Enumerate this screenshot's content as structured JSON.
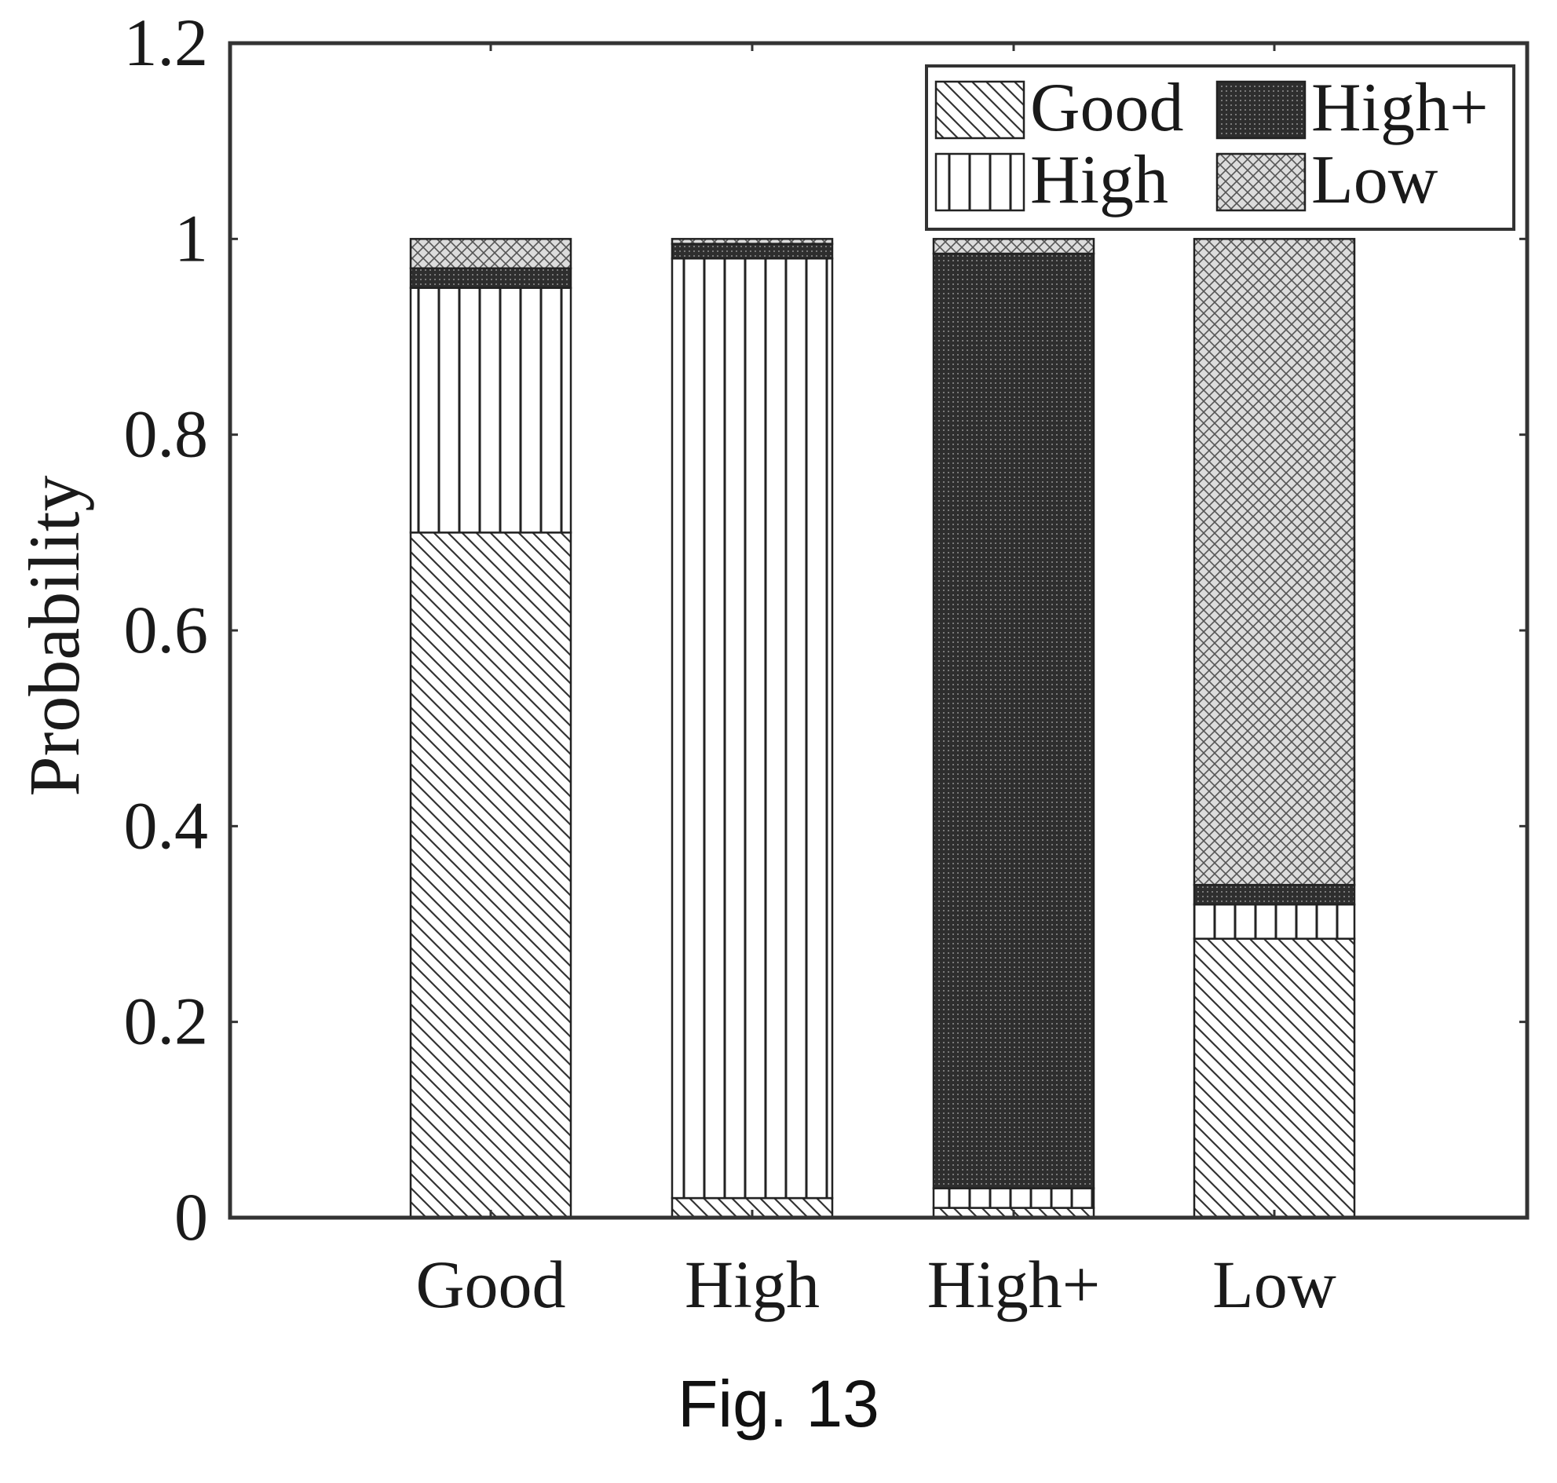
{
  "caption": "Fig. 13",
  "chart_data": {
    "type": "bar",
    "stacked": true,
    "ylabel": "Probability",
    "xlabel": "",
    "ylim": [
      0,
      1.2
    ],
    "yticks": [
      "0",
      "0.2",
      "0.4",
      "0.6",
      "0.8",
      "1",
      "1.2"
    ],
    "ytick_values": [
      0,
      0.2,
      0.4,
      0.6,
      0.8,
      1.0,
      1.2
    ],
    "categories": [
      "Good",
      "High",
      "High+",
      "Low"
    ],
    "series": [
      {
        "name": "Good",
        "values": [
          0.7,
          0.02,
          0.01,
          0.285
        ],
        "pattern": "diagonal"
      },
      {
        "name": "High",
        "values": [
          0.25,
          0.96,
          0.02,
          0.035
        ],
        "pattern": "vertical"
      },
      {
        "name": "High+",
        "values": [
          0.02,
          0.015,
          0.955,
          0.02
        ],
        "pattern": "dense"
      },
      {
        "name": "Low",
        "values": [
          0.03,
          0.005,
          0.015,
          0.66
        ],
        "pattern": "crosshatch"
      }
    ],
    "legend": {
      "position": "top-right",
      "columns": 2,
      "entries": [
        "Good",
        "High+",
        "High",
        "Low"
      ]
    },
    "grid": false
  }
}
